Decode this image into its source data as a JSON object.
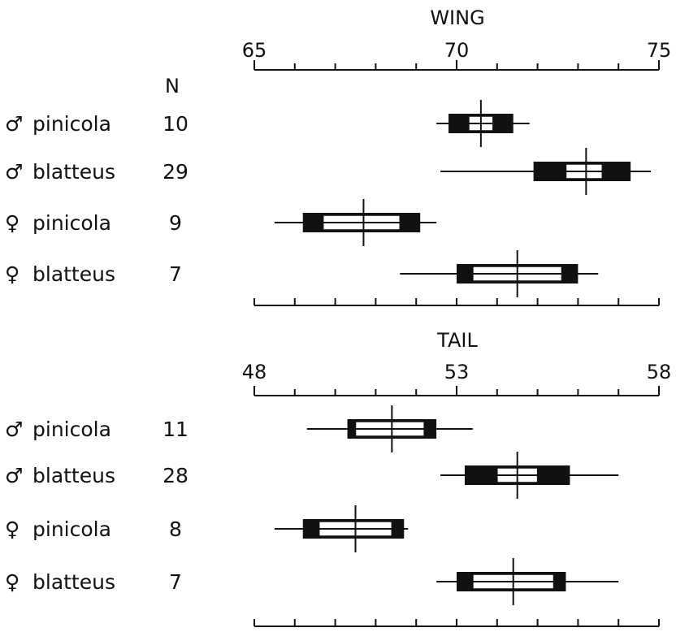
{
  "chart_data": [
    {
      "type": "box",
      "title": "WING",
      "n_header": "N",
      "xlim": [
        65,
        75
      ],
      "ticks": [
        65,
        70,
        75
      ],
      "minor_step": 1,
      "rows": [
        {
          "symbol": "♂",
          "label": "pinicola",
          "n": "10",
          "range": [
            69.5,
            71.8
          ],
          "sd": [
            69.8,
            71.4
          ],
          "ci": [
            70.3,
            70.9
          ],
          "mean": 70.6
        },
        {
          "symbol": "♂",
          "label": "blatteus",
          "n": "29",
          "range": [
            69.6,
            74.8
          ],
          "sd": [
            71.9,
            74.3
          ],
          "ci": [
            72.7,
            73.6
          ],
          "mean": 73.2
        },
        {
          "symbol": "♀",
          "label": "pinicola",
          "n": "9",
          "range": [
            65.5,
            69.5
          ],
          "sd": [
            66.2,
            69.1
          ],
          "ci": [
            66.7,
            68.6
          ],
          "mean": 67.7
        },
        {
          "symbol": "♀",
          "label": "blatteus",
          "n": "7",
          "range": [
            68.6,
            73.5
          ],
          "sd": [
            70.0,
            73.0
          ],
          "ci": [
            70.4,
            72.6
          ],
          "mean": 71.5
        }
      ]
    },
    {
      "type": "box",
      "title": "TAIL",
      "xlim": [
        48,
        58
      ],
      "ticks": [
        48,
        53,
        58
      ],
      "minor_step": 1,
      "rows": [
        {
          "symbol": "♂",
          "label": "pinicola",
          "n": "11",
          "range": [
            49.3,
            53.4
          ],
          "sd": [
            50.3,
            52.5
          ],
          "ci": [
            50.5,
            52.2
          ],
          "mean": 51.4
        },
        {
          "symbol": "♂",
          "label": "blatteus",
          "n": "28",
          "range": [
            52.6,
            57.0
          ],
          "sd": [
            53.2,
            55.8
          ],
          "ci": [
            54.0,
            55.0
          ],
          "mean": 54.5
        },
        {
          "symbol": "♀",
          "label": "pinicola",
          "n": "8",
          "range": [
            48.5,
            51.8
          ],
          "sd": [
            49.2,
            51.7
          ],
          "ci": [
            49.6,
            51.4
          ],
          "mean": 50.5
        },
        {
          "symbol": "♀",
          "label": "blatteus",
          "n": "7",
          "range": [
            52.5,
            57.0
          ],
          "sd": [
            53.0,
            55.7
          ],
          "ci": [
            53.4,
            55.4
          ],
          "mean": 54.4
        }
      ]
    }
  ]
}
